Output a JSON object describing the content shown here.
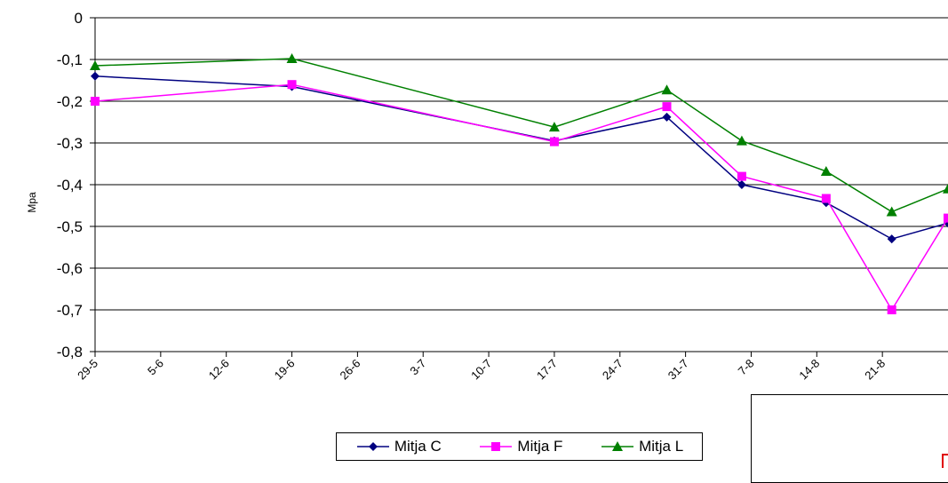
{
  "chart_data": {
    "type": "line",
    "ylabel": "Mpa",
    "ylim": [
      -0.8,
      0
    ],
    "yticks": [
      "0",
      "-0,1",
      "-0,2",
      "-0,3",
      "-0,4",
      "-0,5",
      "-0,6",
      "-0,7",
      "-0,8"
    ],
    "ytick_values": [
      0,
      -0.1,
      -0.2,
      -0.3,
      -0.4,
      -0.5,
      -0.6,
      -0.7,
      -0.8
    ],
    "xticks": [
      "29-5",
      "5-6",
      "12-6",
      "19-6",
      "26-6",
      "3-7",
      "10-7",
      "17-7",
      "24-7",
      "31-7",
      "7-8",
      "14-8",
      "21-8"
    ],
    "xlim": [
      "29-5",
      "28-8"
    ],
    "grid": "horizontal",
    "legend_position": "bottom",
    "series": [
      {
        "name": "Mitja C",
        "color": "#000080",
        "marker": "diamond",
        "points": [
          [
            "29-5",
            -0.14
          ],
          [
            "19-6",
            -0.165
          ],
          [
            "17-7",
            -0.295
          ],
          [
            "29-7",
            -0.238
          ],
          [
            "6-8",
            -0.4
          ],
          [
            "15-8",
            -0.443
          ],
          [
            "22-8",
            -0.53
          ],
          [
            "28-8",
            -0.492
          ]
        ]
      },
      {
        "name": "Mitja F",
        "color": "#ff00ff",
        "marker": "square",
        "points": [
          [
            "29-5",
            -0.2
          ],
          [
            "19-6",
            -0.16
          ],
          [
            "17-7",
            -0.297
          ],
          [
            "29-7",
            -0.213
          ],
          [
            "6-8",
            -0.38
          ],
          [
            "15-8",
            -0.433
          ],
          [
            "22-8",
            -0.7
          ],
          [
            "28-8",
            -0.48
          ]
        ]
      },
      {
        "name": "Mitja L",
        "color": "#008000",
        "marker": "triangle",
        "points": [
          [
            "29-5",
            -0.115
          ],
          [
            "19-6",
            -0.098
          ],
          [
            "17-7",
            -0.262
          ],
          [
            "29-7",
            -0.173
          ],
          [
            "6-8",
            -0.295
          ],
          [
            "15-8",
            -0.368
          ],
          [
            "22-8",
            -0.465
          ],
          [
            "28-8",
            -0.41
          ]
        ]
      }
    ]
  }
}
